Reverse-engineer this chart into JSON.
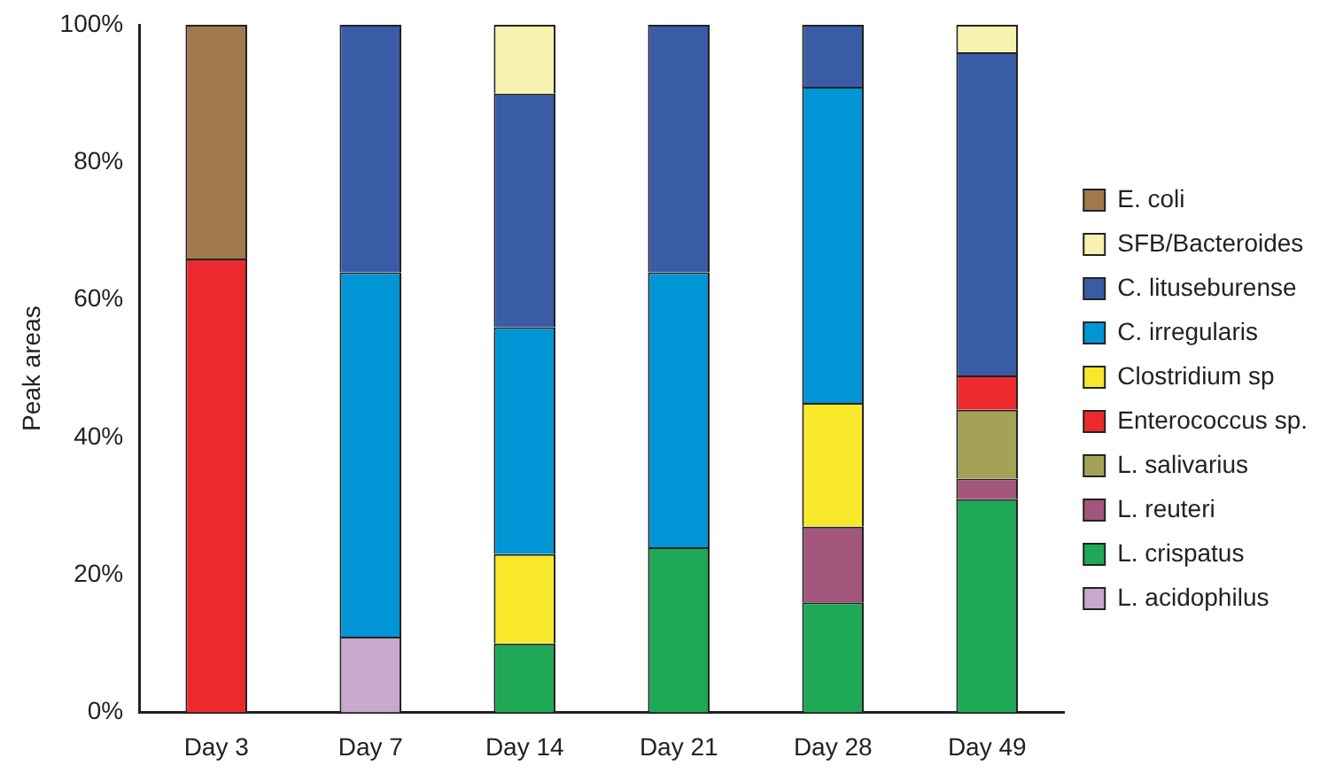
{
  "chart_data": {
    "type": "bar",
    "stacked": true,
    "ylabel": "Peak areas",
    "categories": [
      "Day 3",
      "Day 7",
      "Day 14",
      "Day 21",
      "Day 28",
      "Day 49"
    ],
    "ylim": [
      0,
      100
    ],
    "yticks": [
      {
        "value": 0,
        "label": "0%"
      },
      {
        "value": 20,
        "label": "20%"
      },
      {
        "value": 40,
        "label": "40%"
      },
      {
        "value": 60,
        "label": "60%"
      },
      {
        "value": 80,
        "label": "80%"
      },
      {
        "value": 100,
        "label": "100%"
      }
    ],
    "grid": false,
    "legend": "right",
    "series": [
      {
        "name": "L. acidophilus",
        "color": "#c8a8cc",
        "values": [
          null,
          11,
          null,
          null,
          null,
          null
        ]
      },
      {
        "name": "L. crispatus",
        "color": "#1fa855",
        "values": [
          null,
          null,
          10,
          24,
          16,
          31
        ]
      },
      {
        "name": "L. reuteri",
        "color": "#a3567b",
        "values": [
          null,
          null,
          null,
          null,
          11,
          3
        ]
      },
      {
        "name": "L. salivarius",
        "color": "#a4a256",
        "values": [
          null,
          null,
          null,
          null,
          null,
          10
        ]
      },
      {
        "name": "Enterococcus sp.",
        "color": "#ec2a2e",
        "values": [
          66,
          null,
          null,
          null,
          null,
          5
        ]
      },
      {
        "name": "Clostridium sp",
        "color": "#f7e92a",
        "values": [
          null,
          null,
          13,
          null,
          18,
          null
        ]
      },
      {
        "name": "C. irregularis",
        "color": "#0096d6",
        "values": [
          null,
          53,
          33,
          40,
          46,
          null
        ]
      },
      {
        "name": "C. lituseburense",
        "color": "#3a5ba6",
        "values": [
          null,
          36,
          34,
          36,
          9,
          47
        ]
      },
      {
        "name": "SFB/Bacteroides",
        "color": "#f7f2b0",
        "values": [
          null,
          null,
          10,
          null,
          null,
          4
        ]
      },
      {
        "name": "E. coli",
        "color": "#a07a4c",
        "values": [
          34,
          null,
          null,
          null,
          null,
          null
        ]
      }
    ]
  }
}
